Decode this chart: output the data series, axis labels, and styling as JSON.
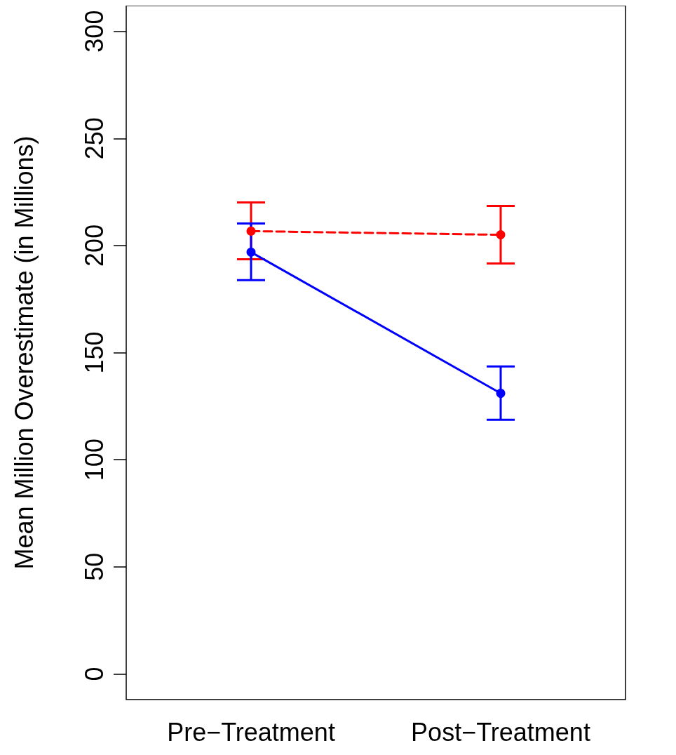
{
  "chart_data": {
    "type": "line",
    "ylabel": "Mean Million Overestimate (in Millions)",
    "categories": [
      "Pre−Treatment",
      "Post−Treatment"
    ],
    "series": [
      {
        "color": "#ff0000",
        "values": [
          206.7,
          205
        ],
        "errors": [
          [
            193.6,
            220.1
          ],
          [
            191.6,
            218.5
          ]
        ],
        "line_style": "dashed"
      },
      {
        "color": "#0000ff",
        "values": [
          196.9,
          131
        ],
        "errors": [
          [
            183.8,
            210.3
          ],
          [
            118.6,
            143.5
          ]
        ],
        "line_style": "solid"
      }
    ],
    "ylim": [
      -12,
      312
    ],
    "yticks": [
      0,
      50,
      100,
      150,
      200,
      250,
      300
    ],
    "marker": "circle"
  }
}
